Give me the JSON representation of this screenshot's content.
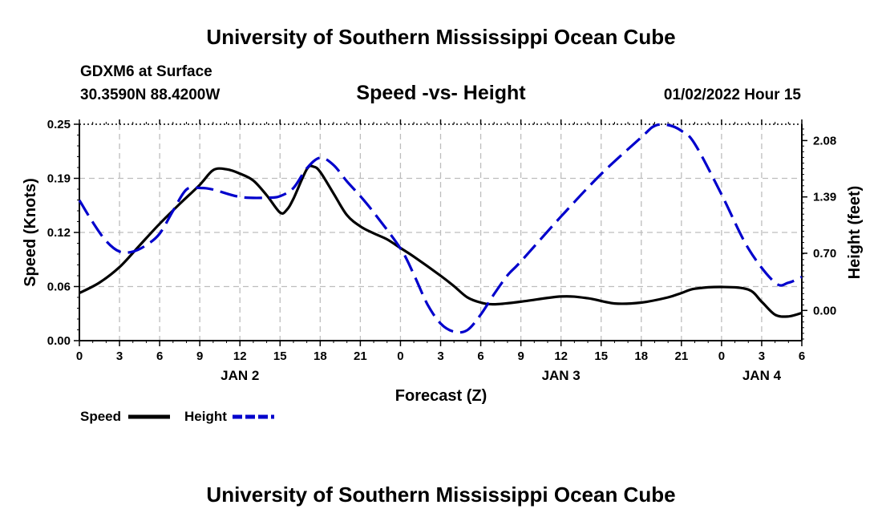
{
  "header": {
    "title": "University of Southern Mississippi Ocean Cube",
    "station": "GDXM6 at Surface",
    "coordinates": "30.3590N  88.4200W",
    "plot_title": "Speed -vs- Height",
    "timestamp": "01/02/2022 Hour 15"
  },
  "footer": {
    "title": "University of Southern Mississippi Ocean Cube"
  },
  "chart_data": {
    "type": "line",
    "title": "Speed -vs- Height",
    "xlabel": "Forecast (Z)",
    "ylabel": "Speed (Knots)",
    "y2label": "Height (feet)",
    "grid": true,
    "x_range": [
      0,
      54
    ],
    "x_ticks": [
      0,
      3,
      6,
      9,
      12,
      15,
      18,
      21,
      24,
      27,
      30,
      33,
      36,
      39,
      42,
      45,
      48,
      51,
      54
    ],
    "x_tick_labels": [
      "0",
      "3",
      "6",
      "9",
      "12",
      "15",
      "18",
      "21",
      "0",
      "3",
      "6",
      "9",
      "12",
      "15",
      "18",
      "21",
      "0",
      "3",
      "6"
    ],
    "day_labels": [
      {
        "label": "JAN 2",
        "at": 12
      },
      {
        "label": "JAN 3",
        "at": 36
      },
      {
        "label": "JAN 4",
        "at": 51
      }
    ],
    "y_range": [
      0,
      0.25
    ],
    "y_ticks": [
      0,
      0.0625,
      0.125,
      0.1875,
      0.25
    ],
    "y_tick_labels": [
      "0.00",
      "0.06",
      "0.12",
      "0.19",
      "0.25"
    ],
    "y2_range": [
      -0.37,
      2.28
    ],
    "y2_ticks": [
      0.0,
      0.7,
      1.39,
      2.08
    ],
    "y2_tick_labels": [
      "0.00",
      "0.70",
      "1.39",
      "2.08"
    ],
    "series": [
      {
        "name": "Speed",
        "axis": "left",
        "color": "#000000",
        "dash": "solid",
        "x": [
          0,
          1.5,
          3,
          4.5,
          6,
          7.5,
          9,
          10,
          11,
          12,
          13,
          14,
          15,
          15.5,
          16,
          17,
          17.5,
          18,
          19,
          20,
          21,
          22,
          23,
          24,
          25,
          27,
          28,
          29,
          30,
          31,
          33,
          36,
          38,
          40,
          42,
          44,
          45,
          46,
          48,
          50,
          51,
          52,
          53,
          54
        ],
        "values": [
          0.055,
          0.067,
          0.085,
          0.11,
          0.135,
          0.158,
          0.18,
          0.197,
          0.198,
          0.193,
          0.185,
          0.168,
          0.148,
          0.151,
          0.164,
          0.198,
          0.201,
          0.195,
          0.17,
          0.145,
          0.132,
          0.124,
          0.117,
          0.107,
          0.097,
          0.075,
          0.063,
          0.05,
          0.044,
          0.042,
          0.045,
          0.051,
          0.049,
          0.043,
          0.044,
          0.05,
          0.055,
          0.06,
          0.062,
          0.059,
          0.045,
          0.03,
          0.028,
          0.032
        ]
      },
      {
        "name": "Height",
        "axis": "right",
        "color": "#0000cc",
        "dash": "dashed",
        "x": [
          0,
          1,
          2,
          3,
          4,
          5,
          6,
          7,
          8,
          9,
          10,
          12,
          14,
          15,
          16,
          17,
          18,
          19,
          20,
          21,
          22,
          24,
          25,
          26,
          27,
          28,
          29,
          30,
          31,
          32,
          33,
          36,
          39,
          42,
          43,
          44,
          45,
          46,
          48,
          50,
          52,
          53,
          54
        ],
        "values": [
          1.35,
          1.08,
          0.85,
          0.72,
          0.72,
          0.8,
          0.94,
          1.22,
          1.48,
          1.5,
          1.48,
          1.39,
          1.38,
          1.4,
          1.5,
          1.74,
          1.87,
          1.78,
          1.58,
          1.4,
          1.2,
          0.76,
          0.44,
          0.08,
          -0.16,
          -0.26,
          -0.24,
          -0.05,
          0.2,
          0.43,
          0.6,
          1.15,
          1.67,
          2.12,
          2.26,
          2.27,
          2.2,
          2.04,
          1.42,
          0.76,
          0.34,
          0.34,
          0.41
        ]
      }
    ],
    "legend": [
      {
        "label": "Speed",
        "color": "#000000",
        "dash": "solid"
      },
      {
        "label": "Height",
        "color": "#0000cc",
        "dash": "dashed"
      }
    ]
  }
}
